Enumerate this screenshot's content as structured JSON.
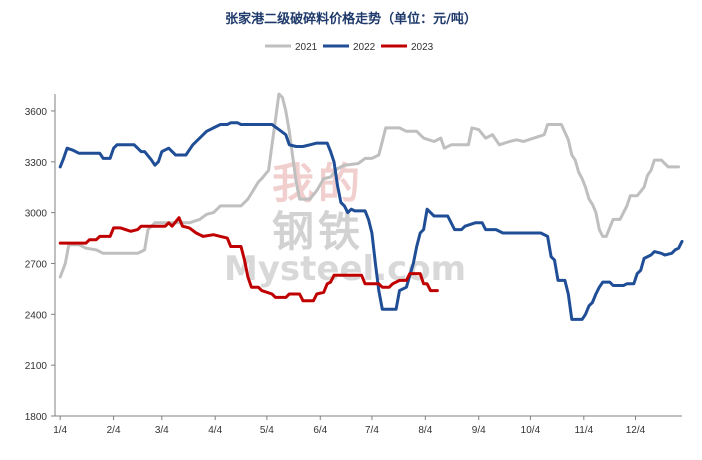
{
  "chart_data": {
    "type": "line",
    "title": "张家港二级破碎料价格走势（单位：元/吨）",
    "xlabel": "",
    "ylabel": "",
    "ylim": [
      1800,
      3700
    ],
    "yticks": [
      1800,
      2100,
      2400,
      2700,
      3000,
      3300,
      3600
    ],
    "xlim": [
      0,
      364
    ],
    "xticks": [
      {
        "label": "1/4",
        "day": 3
      },
      {
        "label": "2/4",
        "day": 34
      },
      {
        "label": "3/4",
        "day": 62
      },
      {
        "label": "4/4",
        "day": 93
      },
      {
        "label": "5/4",
        "day": 123
      },
      {
        "label": "6/4",
        "day": 154
      },
      {
        "label": "7/4",
        "day": 184
      },
      {
        "label": "8/4",
        "day": 215
      },
      {
        "label": "9/4",
        "day": 246
      },
      {
        "label": "10/4",
        "day": 276
      },
      {
        "label": "11/4",
        "day": 307
      },
      {
        "label": "12/4",
        "day": 337
      }
    ],
    "grid": false,
    "legend_position": "top",
    "series": [
      {
        "name": "2021",
        "color": "#bfbfbf",
        "points": [
          [
            3,
            2620
          ],
          [
            6,
            2700
          ],
          [
            8,
            2810
          ],
          [
            14,
            2810
          ],
          [
            18,
            2790
          ],
          [
            24,
            2780
          ],
          [
            28,
            2760
          ],
          [
            48,
            2760
          ],
          [
            52,
            2780
          ],
          [
            54,
            2900
          ],
          [
            58,
            2940
          ],
          [
            78,
            2940
          ],
          [
            84,
            2960
          ],
          [
            88,
            2990
          ],
          [
            92,
            3000
          ],
          [
            96,
            3040
          ],
          [
            108,
            3040
          ],
          [
            112,
            3080
          ],
          [
            118,
            3180
          ],
          [
            120,
            3200
          ],
          [
            124,
            3250
          ],
          [
            126,
            3400
          ],
          [
            128,
            3550
          ],
          [
            130,
            3700
          ],
          [
            132,
            3680
          ],
          [
            134,
            3600
          ],
          [
            136,
            3480
          ],
          [
            138,
            3330
          ],
          [
            140,
            3180
          ],
          [
            142,
            3080
          ],
          [
            148,
            3080
          ],
          [
            152,
            3130
          ],
          [
            156,
            3200
          ],
          [
            160,
            3210
          ],
          [
            164,
            3260
          ],
          [
            168,
            3280
          ],
          [
            176,
            3290
          ],
          [
            180,
            3320
          ],
          [
            184,
            3320
          ],
          [
            188,
            3340
          ],
          [
            190,
            3420
          ],
          [
            192,
            3500
          ],
          [
            200,
            3500
          ],
          [
            204,
            3480
          ],
          [
            210,
            3480
          ],
          [
            214,
            3440
          ],
          [
            220,
            3420
          ],
          [
            224,
            3440
          ],
          [
            226,
            3380
          ],
          [
            230,
            3400
          ],
          [
            240,
            3400
          ],
          [
            242,
            3500
          ],
          [
            246,
            3490
          ],
          [
            250,
            3440
          ],
          [
            254,
            3460
          ],
          [
            258,
            3400
          ],
          [
            264,
            3420
          ],
          [
            268,
            3430
          ],
          [
            272,
            3420
          ],
          [
            278,
            3440
          ],
          [
            284,
            3460
          ],
          [
            286,
            3520
          ],
          [
            294,
            3520
          ],
          [
            298,
            3430
          ],
          [
            300,
            3340
          ],
          [
            302,
            3310
          ],
          [
            304,
            3240
          ],
          [
            306,
            3200
          ],
          [
            308,
            3150
          ],
          [
            310,
            3080
          ],
          [
            312,
            3050
          ],
          [
            314,
            3000
          ],
          [
            316,
            2900
          ],
          [
            318,
            2860
          ],
          [
            320,
            2860
          ],
          [
            324,
            2960
          ],
          [
            328,
            2960
          ],
          [
            332,
            3040
          ],
          [
            334,
            3100
          ],
          [
            338,
            3100
          ],
          [
            342,
            3150
          ],
          [
            344,
            3220
          ],
          [
            346,
            3250
          ],
          [
            348,
            3310
          ],
          [
            352,
            3310
          ],
          [
            356,
            3270
          ],
          [
            362,
            3270
          ]
        ]
      },
      {
        "name": "2022",
        "color": "#1f4e96",
        "points": [
          [
            3,
            3270
          ],
          [
            5,
            3320
          ],
          [
            7,
            3380
          ],
          [
            10,
            3370
          ],
          [
            14,
            3350
          ],
          [
            26,
            3350
          ],
          [
            28,
            3320
          ],
          [
            32,
            3320
          ],
          [
            34,
            3380
          ],
          [
            36,
            3400
          ],
          [
            46,
            3400
          ],
          [
            50,
            3360
          ],
          [
            52,
            3360
          ],
          [
            56,
            3310
          ],
          [
            58,
            3280
          ],
          [
            60,
            3300
          ],
          [
            62,
            3360
          ],
          [
            66,
            3380
          ],
          [
            70,
            3340
          ],
          [
            76,
            3340
          ],
          [
            80,
            3400
          ],
          [
            84,
            3440
          ],
          [
            88,
            3480
          ],
          [
            92,
            3500
          ],
          [
            96,
            3520
          ],
          [
            100,
            3520
          ],
          [
            102,
            3530
          ],
          [
            106,
            3530
          ],
          [
            108,
            3520
          ],
          [
            122,
            3520
          ],
          [
            126,
            3520
          ],
          [
            130,
            3490
          ],
          [
            134,
            3460
          ],
          [
            136,
            3400
          ],
          [
            140,
            3390
          ],
          [
            144,
            3390
          ],
          [
            148,
            3400
          ],
          [
            152,
            3410
          ],
          [
            158,
            3410
          ],
          [
            160,
            3360
          ],
          [
            162,
            3300
          ],
          [
            164,
            3160
          ],
          [
            166,
            3060
          ],
          [
            168,
            3040
          ],
          [
            170,
            3000
          ],
          [
            172,
            3020
          ],
          [
            174,
            3010
          ],
          [
            180,
            3010
          ],
          [
            182,
            2960
          ],
          [
            184,
            2880
          ],
          [
            186,
            2700
          ],
          [
            188,
            2540
          ],
          [
            190,
            2430
          ],
          [
            198,
            2430
          ],
          [
            200,
            2540
          ],
          [
            204,
            2560
          ],
          [
            208,
            2700
          ],
          [
            210,
            2800
          ],
          [
            212,
            2880
          ],
          [
            214,
            2900
          ],
          [
            216,
            3020
          ],
          [
            220,
            2980
          ],
          [
            228,
            2980
          ],
          [
            232,
            2900
          ],
          [
            236,
            2900
          ],
          [
            238,
            2920
          ],
          [
            244,
            2940
          ],
          [
            248,
            2940
          ],
          [
            250,
            2900
          ],
          [
            256,
            2900
          ],
          [
            260,
            2880
          ],
          [
            282,
            2880
          ],
          [
            286,
            2860
          ],
          [
            288,
            2740
          ],
          [
            290,
            2720
          ],
          [
            292,
            2600
          ],
          [
            294,
            2600
          ],
          [
            296,
            2600
          ],
          [
            298,
            2520
          ],
          [
            300,
            2370
          ],
          [
            306,
            2370
          ],
          [
            308,
            2400
          ],
          [
            310,
            2450
          ],
          [
            312,
            2470
          ],
          [
            314,
            2520
          ],
          [
            316,
            2560
          ],
          [
            318,
            2590
          ],
          [
            322,
            2590
          ],
          [
            324,
            2570
          ],
          [
            330,
            2570
          ],
          [
            332,
            2580
          ],
          [
            336,
            2580
          ],
          [
            338,
            2640
          ],
          [
            340,
            2660
          ],
          [
            342,
            2730
          ],
          [
            346,
            2750
          ],
          [
            348,
            2770
          ],
          [
            352,
            2760
          ],
          [
            354,
            2750
          ],
          [
            358,
            2760
          ],
          [
            360,
            2780
          ],
          [
            362,
            2790
          ],
          [
            364,
            2830
          ]
        ]
      },
      {
        "name": "2023",
        "color": "#c00000",
        "points": [
          [
            3,
            2820
          ],
          [
            18,
            2820
          ],
          [
            20,
            2840
          ],
          [
            24,
            2840
          ],
          [
            26,
            2860
          ],
          [
            32,
            2860
          ],
          [
            34,
            2910
          ],
          [
            38,
            2910
          ],
          [
            44,
            2890
          ],
          [
            48,
            2900
          ],
          [
            50,
            2920
          ],
          [
            64,
            2920
          ],
          [
            66,
            2940
          ],
          [
            68,
            2920
          ],
          [
            72,
            2970
          ],
          [
            74,
            2920
          ],
          [
            78,
            2910
          ],
          [
            82,
            2880
          ],
          [
            86,
            2860
          ],
          [
            92,
            2870
          ],
          [
            96,
            2860
          ],
          [
            100,
            2850
          ],
          [
            102,
            2800
          ],
          [
            108,
            2800
          ],
          [
            110,
            2720
          ],
          [
            112,
            2620
          ],
          [
            114,
            2560
          ],
          [
            118,
            2560
          ],
          [
            120,
            2540
          ],
          [
            126,
            2520
          ],
          [
            128,
            2500
          ],
          [
            134,
            2500
          ],
          [
            136,
            2520
          ],
          [
            142,
            2520
          ],
          [
            144,
            2480
          ],
          [
            150,
            2480
          ],
          [
            152,
            2520
          ],
          [
            156,
            2530
          ],
          [
            158,
            2580
          ],
          [
            160,
            2590
          ],
          [
            162,
            2630
          ],
          [
            178,
            2630
          ],
          [
            180,
            2580
          ],
          [
            188,
            2580
          ],
          [
            190,
            2560
          ],
          [
            194,
            2560
          ],
          [
            196,
            2580
          ],
          [
            200,
            2600
          ],
          [
            204,
            2600
          ],
          [
            206,
            2640
          ],
          [
            212,
            2640
          ],
          [
            214,
            2580
          ],
          [
            216,
            2580
          ],
          [
            218,
            2540
          ],
          [
            222,
            2540
          ]
        ]
      }
    ],
    "watermark": {
      "line1": "我的",
      "line2": "钢铁",
      "line3": "Mysteel.com"
    }
  }
}
